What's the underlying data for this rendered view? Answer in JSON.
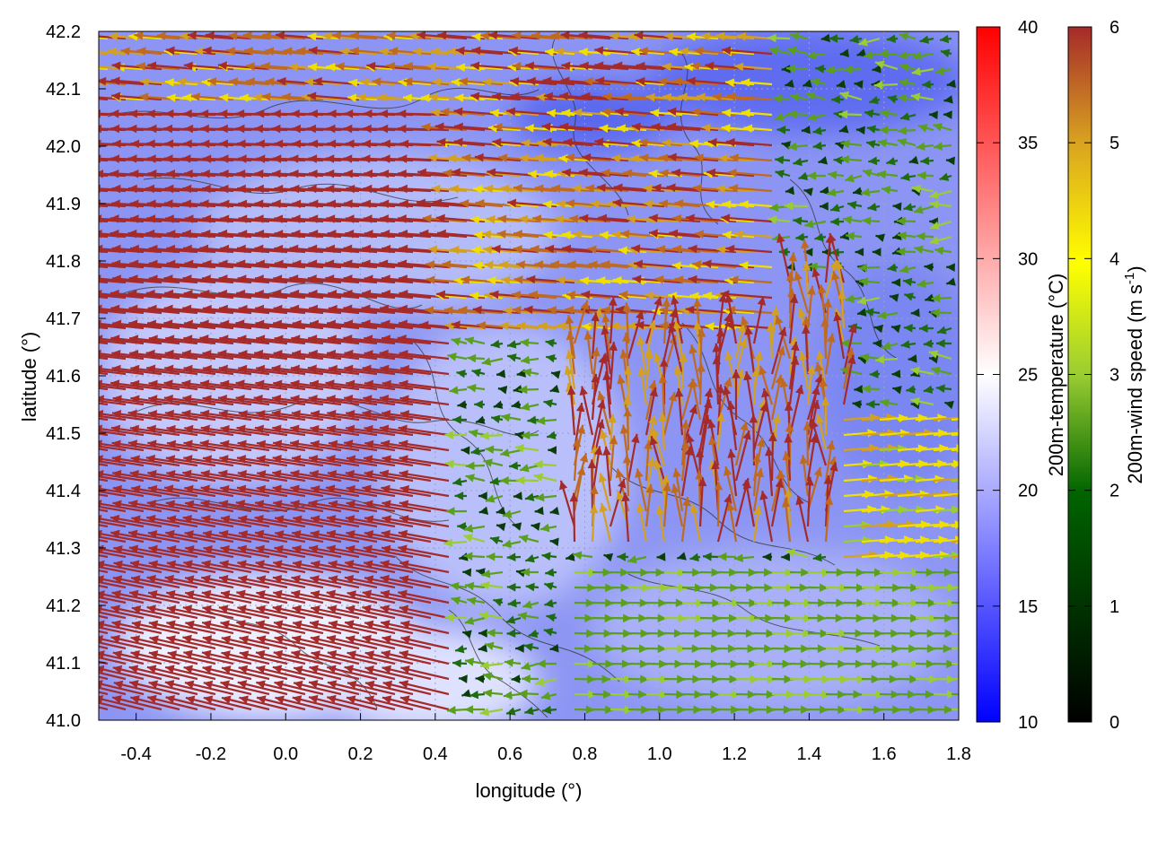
{
  "chart_data": {
    "type": "heatmap",
    "xlabel": "longitude (°)",
    "ylabel": "latitude (°)",
    "xlim": [
      -0.5,
      1.8
    ],
    "ylim": [
      41.0,
      42.2
    ],
    "x_ticks": [
      "-0.4",
      "-0.2",
      "0.0",
      "0.2",
      "0.4",
      "0.6",
      "0.8",
      "1.0",
      "1.2",
      "1.4",
      "1.6",
      "1.8"
    ],
    "y_ticks": [
      "41.0",
      "41.1",
      "41.2",
      "41.3",
      "41.4",
      "41.5",
      "41.6",
      "41.7",
      "41.8",
      "41.9",
      "42.0",
      "42.1",
      "42.2"
    ],
    "grid": true,
    "temperature_colorbar": {
      "label": "200m-temperature (°C)",
      "range": [
        10,
        40
      ],
      "ticks": [
        "10",
        "15",
        "20",
        "25",
        "30",
        "35",
        "40"
      ],
      "colors": [
        "#0000ff",
        "#ffffff",
        "#ff0000"
      ]
    },
    "wind_colorbar": {
      "label_prefix": "200m-wind speed (m s",
      "label_sup": "-1",
      "label_suffix": ")",
      "range": [
        0,
        6
      ],
      "ticks": [
        "0",
        "1",
        "2",
        "3",
        "4",
        "5",
        "6"
      ],
      "colors": [
        "#000000",
        "#006400",
        "#9acd32",
        "#ffff00",
        "#daa520",
        "#a52a2a"
      ]
    },
    "overlays": [
      "temperature field",
      "terrain contours",
      "wind vectors"
    ]
  }
}
